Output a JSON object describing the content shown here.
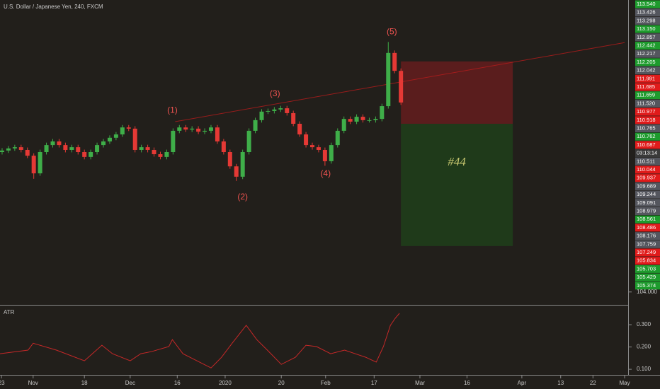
{
  "chart_data": {
    "type": "candlestick",
    "title": "U.S. Dollar / Japanese Yen, 240, FXCM",
    "up_color": "#3fae49",
    "down_color": "#e53935",
    "xlim": [
      0,
      297
    ],
    "ylim": [
      103.6,
      113.6
    ],
    "xticks": [
      {
        "value": 0.7,
        "label": "23"
      },
      {
        "value": 15.7,
        "label": "Nov"
      },
      {
        "value": 40,
        "label": "18"
      },
      {
        "value": 61.7,
        "label": "Dec"
      },
      {
        "value": 84,
        "label": "16"
      },
      {
        "value": 106.7,
        "label": "2020"
      },
      {
        "value": 133.3,
        "label": "20"
      },
      {
        "value": 154.3,
        "label": "Feb"
      },
      {
        "value": 177.3,
        "label": "17"
      },
      {
        "value": 199,
        "label": "Mar"
      },
      {
        "value": 221.3,
        "label": "16"
      },
      {
        "value": 247.3,
        "label": "Apr"
      },
      {
        "value": 265.7,
        "label": "13"
      },
      {
        "value": 281,
        "label": "22"
      },
      {
        "value": 296,
        "label": "May"
      }
    ],
    "yticks": [
      {
        "value": 104,
        "label": "104.000"
      }
    ],
    "grid": false,
    "x": [
      1,
      4,
      7,
      10,
      13,
      16,
      19,
      22,
      25,
      28,
      31,
      34,
      37,
      40,
      43,
      46,
      49,
      52,
      55,
      58,
      61,
      64,
      67,
      70,
      73,
      76,
      79,
      82,
      85,
      88,
      91,
      94,
      97,
      100,
      103,
      106,
      109,
      112,
      115,
      118,
      121,
      124,
      127,
      130,
      133,
      136,
      139,
      142,
      145,
      148,
      151,
      154,
      157,
      160,
      163,
      166,
      169,
      172,
      175,
      178,
      181,
      184,
      187,
      190
    ],
    "candles": [
      [
        108.6,
        108.73,
        108.52,
        108.65
      ],
      [
        108.65,
        108.8,
        108.57,
        108.72
      ],
      [
        108.72,
        108.84,
        108.64,
        108.76
      ],
      [
        108.76,
        108.84,
        108.59,
        108.67
      ],
      [
        108.67,
        108.75,
        108.4,
        108.48
      ],
      [
        108.48,
        108.56,
        107.72,
        107.9
      ],
      [
        107.9,
        108.68,
        107.82,
        108.6
      ],
      [
        108.6,
        108.91,
        108.52,
        108.83
      ],
      [
        108.83,
        109.03,
        108.75,
        108.95
      ],
      [
        108.95,
        109.03,
        108.75,
        108.83
      ],
      [
        108.83,
        108.91,
        108.59,
        108.67
      ],
      [
        108.67,
        108.84,
        108.59,
        108.76
      ],
      [
        108.76,
        108.84,
        108.52,
        108.6
      ],
      [
        108.6,
        108.68,
        108.36,
        108.44
      ],
      [
        108.44,
        108.68,
        108.36,
        108.6
      ],
      [
        108.6,
        108.91,
        108.52,
        108.83
      ],
      [
        108.83,
        109.03,
        108.75,
        108.95
      ],
      [
        108.95,
        109.15,
        108.87,
        109.07
      ],
      [
        109.07,
        109.26,
        108.99,
        109.18
      ],
      [
        109.18,
        109.49,
        109.1,
        109.41
      ],
      [
        109.41,
        109.49,
        109.29,
        109.37
      ],
      [
        109.37,
        109.45,
        108.59,
        108.67
      ],
      [
        108.67,
        108.84,
        108.59,
        108.76
      ],
      [
        108.76,
        108.84,
        108.59,
        108.67
      ],
      [
        108.67,
        108.75,
        108.45,
        108.53
      ],
      [
        108.53,
        108.61,
        108.36,
        108.44
      ],
      [
        108.44,
        108.68,
        108.36,
        108.6
      ],
      [
        108.6,
        109.38,
        108.52,
        109.3
      ],
      [
        109.3,
        109.49,
        109.22,
        109.41
      ],
      [
        109.41,
        109.49,
        109.26,
        109.34
      ],
      [
        109.34,
        109.45,
        109.26,
        109.37
      ],
      [
        109.37,
        109.45,
        109.19,
        109.27
      ],
      [
        109.27,
        109.38,
        109.19,
        109.3
      ],
      [
        109.3,
        109.49,
        109.22,
        109.41
      ],
      [
        109.41,
        109.49,
        108.87,
        108.95
      ],
      [
        108.95,
        109.03,
        108.52,
        108.6
      ],
      [
        108.6,
        108.68,
        108.05,
        108.13
      ],
      [
        108.13,
        108.21,
        107.65,
        107.79
      ],
      [
        107.79,
        108.68,
        107.71,
        108.6
      ],
      [
        108.6,
        109.38,
        108.52,
        109.3
      ],
      [
        109.3,
        109.73,
        109.22,
        109.65
      ],
      [
        109.65,
        110.01,
        109.57,
        109.93
      ],
      [
        109.93,
        110.03,
        109.85,
        109.95
      ],
      [
        109.95,
        110.08,
        109.87,
        110.0
      ],
      [
        110.0,
        110.12,
        109.92,
        110.04
      ],
      [
        110.04,
        110.12,
        109.8,
        109.88
      ],
      [
        109.88,
        109.96,
        109.45,
        109.53
      ],
      [
        109.53,
        109.61,
        109.1,
        109.18
      ],
      [
        109.18,
        109.26,
        108.75,
        108.83
      ],
      [
        108.83,
        108.91,
        108.68,
        108.76
      ],
      [
        108.76,
        108.84,
        108.59,
        108.67
      ],
      [
        108.67,
        108.75,
        108.15,
        108.3
      ],
      [
        108.3,
        108.91,
        108.22,
        108.83
      ],
      [
        108.83,
        109.38,
        108.75,
        109.3
      ],
      [
        109.3,
        109.77,
        109.22,
        109.69
      ],
      [
        109.69,
        109.77,
        109.52,
        109.6
      ],
      [
        109.6,
        109.84,
        109.52,
        109.76
      ],
      [
        109.76,
        109.84,
        109.57,
        109.65
      ],
      [
        109.65,
        109.73,
        109.57,
        109.65
      ],
      [
        109.65,
        109.77,
        109.57,
        109.69
      ],
      [
        109.69,
        110.19,
        109.61,
        110.11
      ],
      [
        110.11,
        112.22,
        110.03,
        111.86
      ],
      [
        111.86,
        111.94,
        111.19,
        111.27
      ],
      [
        111.27,
        111.35,
        110.15,
        110.23
      ]
    ],
    "annotations": [
      {
        "text": "(1)",
        "x": 81.7,
        "y": 109.97
      },
      {
        "text": "(2)",
        "x": 115,
        "y": 107.11
      },
      {
        "text": "(3)",
        "x": 130.3,
        "y": 110.51
      },
      {
        "text": "(4)",
        "x": 154.3,
        "y": 107.88
      },
      {
        "text": "(5)",
        "x": 185.7,
        "y": 112.55
      }
    ],
    "trend_line": {
      "x": [
        83,
        296
      ],
      "y": [
        109.6,
        112.2
      ],
      "color": "#b71c1c"
    },
    "position": {
      "x": [
        190,
        243
      ],
      "stop": 111.58,
      "entry": 109.53,
      "target": 105.51,
      "label": "#44",
      "stop_color": "#5a1d1d",
      "target_color": "#1f3a1a"
    },
    "price_tags": [
      {
        "label": "113.540",
        "color": "#1e9b2d"
      },
      {
        "label": "113.426",
        "color": "#54565e"
      },
      {
        "label": "113.298",
        "color": "#54565e"
      },
      {
        "label": "113.150",
        "color": "#1e9b2d"
      },
      {
        "label": "112.857",
        "color": "#54565e"
      },
      {
        "label": "112.442",
        "color": "#1e9b2d"
      },
      {
        "label": "112.217",
        "color": "#54565e"
      },
      {
        "label": "112.205",
        "color": "#1e9b2d"
      },
      {
        "label": "112.042",
        "color": "#54565e"
      },
      {
        "label": "111.991",
        "color": "#e01b1b"
      },
      {
        "label": "111.685",
        "color": "#e01b1b"
      },
      {
        "label": "111.659",
        "color": "#1e9b2d"
      },
      {
        "label": "111.520",
        "color": "#54565e"
      },
      {
        "label": "110.977",
        "color": "#e01b1b"
      },
      {
        "label": "110.918",
        "color": "#e01b1b"
      },
      {
        "label": "110.765",
        "color": "#54565e"
      },
      {
        "label": "110.762",
        "color": "#1e9b2d"
      },
      {
        "label": "110.687",
        "color": "#e01b1b"
      },
      {
        "label": "03:13:14",
        "color": "#3a3a3a"
      },
      {
        "label": "110.511",
        "color": "#54565e"
      },
      {
        "label": "110.044",
        "color": "#e01b1b"
      },
      {
        "label": "109.937",
        "color": "#e01b1b"
      },
      {
        "label": "109.689",
        "color": "#54565e"
      },
      {
        "label": "109.244",
        "color": "#54565e"
      },
      {
        "label": "109.091",
        "color": "#54565e"
      },
      {
        "label": "108.979",
        "color": "#54565e"
      },
      {
        "label": "108.561",
        "color": "#1e9b2d"
      },
      {
        "label": "108.486",
        "color": "#e01b1b"
      },
      {
        "label": "108.176",
        "color": "#54565e"
      },
      {
        "label": "107.759",
        "color": "#54565e"
      },
      {
        "label": "107.249",
        "color": "#e01b1b"
      },
      {
        "label": "105.834",
        "color": "#e01b1b"
      },
      {
        "label": "105.703",
        "color": "#1e9b2d"
      },
      {
        "label": "105.429",
        "color": "#1e9b2d"
      },
      {
        "label": "105.374",
        "color": "#1e9b2d"
      }
    ],
    "atr": {
      "title": "ATR",
      "color": "#c62828",
      "ylim": [
        0.075,
        0.386
      ],
      "yticks": [
        {
          "value": 0.3,
          "label": "0.300"
        },
        {
          "value": 0.2,
          "label": "0.200"
        },
        {
          "value": 0.1,
          "label": "0.100"
        }
      ],
      "x": [
        0,
        13.3,
        15.7,
        26.7,
        40,
        48.3,
        53.3,
        61.7,
        66.7,
        71.7,
        80,
        81.7,
        86.7,
        96.7,
        100,
        105,
        110,
        116.7,
        121.7,
        126.7,
        133.3,
        140,
        145,
        150,
        156.7,
        163.3,
        173.3,
        178.3,
        181.7,
        185,
        187.3,
        189.3
      ],
      "values": [
        0.17,
        0.186,
        0.217,
        0.186,
        0.138,
        0.208,
        0.17,
        0.138,
        0.17,
        0.179,
        0.202,
        0.233,
        0.17,
        0.122,
        0.106,
        0.154,
        0.217,
        0.297,
        0.233,
        0.186,
        0.122,
        0.154,
        0.208,
        0.202,
        0.17,
        0.186,
        0.154,
        0.132,
        0.202,
        0.297,
        0.329,
        0.351
      ]
    }
  }
}
